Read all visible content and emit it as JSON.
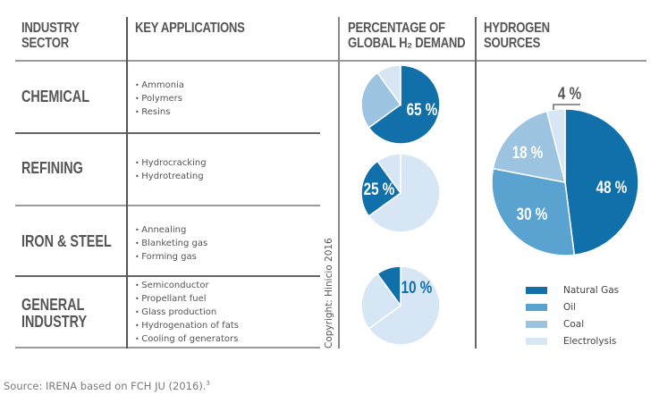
{
  "headers": {
    "sector": [
      "INDUSTRY",
      "SECTOR"
    ],
    "applications": "KEY APPLICATIONS",
    "demand": [
      "PERCENTAGE OF",
      "GLOBAL H₂ DEMAND"
    ],
    "sources": [
      "HYDROGEN",
      "SOURCES"
    ]
  },
  "rows": [
    {
      "sector": [
        "CHEMICAL"
      ],
      "applications": [
        "Ammonia",
        "Polymers",
        "Resins"
      ],
      "demand_label": "65 %"
    },
    {
      "sector": [
        "REFINING"
      ],
      "applications": [
        "Hydrocracking",
        "Hydrotreating"
      ],
      "demand_label": "25 %"
    },
    {
      "sector": [
        "IRON & STEEL"
      ],
      "applications": [
        "Annealing",
        "Blanketing gas",
        "Forming gas"
      ],
      "demand_label": ""
    },
    {
      "sector": [
        "GENERAL",
        "INDUSTRY"
      ],
      "applications": [
        "Semiconductor",
        "Propellant fuel",
        "Glass production",
        "Hydrogenation of fats",
        "Cooling of generators"
      ],
      "demand_label": "10 %"
    }
  ],
  "copyright": "Copyright: Hinicio 2016",
  "source": {
    "text": "Source: IRENA based on FCH JU (2016).",
    "footnote": "3"
  },
  "colors": {
    "natural_gas": "#1170a9",
    "oil": "#5aa2cf",
    "coal": "#9cc3e0",
    "electrolysis": "#d6e6f4",
    "text": "#555555",
    "rule": "#9a9a9a"
  },
  "chart_data": [
    {
      "type": "pie",
      "title": "PERCENTAGE OF GLOBAL H₂ DEMAND",
      "categories": [
        "Chemical",
        "Refining",
        "General Industry"
      ],
      "values": [
        65,
        25,
        10
      ],
      "labels": [
        "65 %",
        "25 %",
        "10 %"
      ],
      "note": "one pie per sector, highlighting that sector's share"
    },
    {
      "type": "pie",
      "title": "HYDROGEN SOURCES",
      "categories": [
        "Natural Gas",
        "Oil",
        "Coal",
        "Electrolysis"
      ],
      "values": [
        48,
        30,
        18,
        4
      ],
      "labels": [
        "48 %",
        "30 %",
        "18 %",
        "4 %"
      ],
      "legend": [
        "Natural Gas",
        "Oil",
        "Coal",
        "Electrolysis"
      ],
      "legend_position": "bottom-right"
    }
  ]
}
